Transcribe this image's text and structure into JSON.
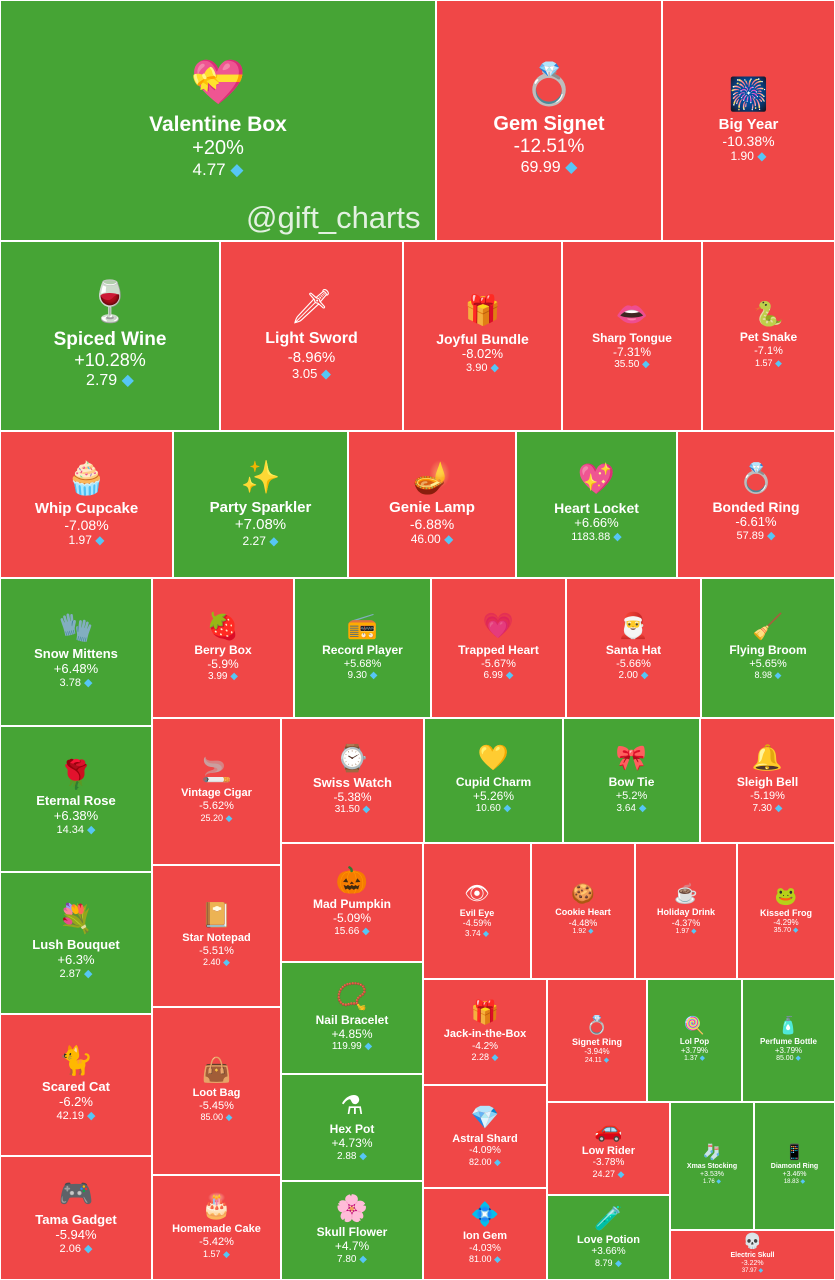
{
  "watermark": "@gift_charts",
  "currency_icon": "diamond-icon",
  "colors": {
    "up": "#46a435",
    "down": "#f04747"
  },
  "chart_data": {
    "type": "treemap",
    "size_metric": "absolute percent change",
    "items": [
      {
        "name": "Valentine Box",
        "change": "+20%",
        "price": "4.77",
        "icon": "💝"
      },
      {
        "name": "Gem Signet",
        "change": "-12.51%",
        "price": "69.99",
        "icon": "💍"
      },
      {
        "name": "Big Year",
        "change": "-10.38%",
        "price": "1.90",
        "icon": "🎆"
      },
      {
        "name": "Spiced Wine",
        "change": "+10.28%",
        "price": "2.79",
        "icon": "🍷"
      },
      {
        "name": "Light Sword",
        "change": "-8.96%",
        "price": "3.05",
        "icon": "🗡"
      },
      {
        "name": "Joyful Bundle",
        "change": "-8.02%",
        "price": "3.90",
        "icon": "🎁"
      },
      {
        "name": "Sharp Tongue",
        "change": "-7.31%",
        "price": "35.50",
        "icon": "👄"
      },
      {
        "name": "Pet Snake",
        "change": "-7.1%",
        "price": "1.57",
        "icon": "🐍"
      },
      {
        "name": "Whip Cupcake",
        "change": "-7.08%",
        "price": "1.97",
        "icon": "🧁"
      },
      {
        "name": "Party Sparkler",
        "change": "+7.08%",
        "price": "2.27",
        "icon": "✨"
      },
      {
        "name": "Genie Lamp",
        "change": "-6.88%",
        "price": "46.00",
        "icon": "🪔"
      },
      {
        "name": "Heart Locket",
        "change": "+6.66%",
        "price": "1183.88",
        "icon": "💖"
      },
      {
        "name": "Bonded Ring",
        "change": "-6.61%",
        "price": "57.89",
        "icon": "💍"
      },
      {
        "name": "Snow Mittens",
        "change": "+6.48%",
        "price": "3.78",
        "icon": "🧤"
      },
      {
        "name": "Berry Box",
        "change": "-5.9%",
        "price": "3.99",
        "icon": "🍓"
      },
      {
        "name": "Record Player",
        "change": "+5.68%",
        "price": "9.30",
        "icon": "📻"
      },
      {
        "name": "Trapped Heart",
        "change": "-5.67%",
        "price": "6.99",
        "icon": "💗"
      },
      {
        "name": "Santa Hat",
        "change": "-5.66%",
        "price": "2.00",
        "icon": "🎅"
      },
      {
        "name": "Flying Broom",
        "change": "+5.65%",
        "price": "8.98",
        "icon": "🧹"
      },
      {
        "name": "Eternal Rose",
        "change": "+6.38%",
        "price": "14.34",
        "icon": "🌹"
      },
      {
        "name": "Vintage Cigar",
        "change": "-5.62%",
        "price": "25.20",
        "icon": "🚬"
      },
      {
        "name": "Swiss Watch",
        "change": "-5.38%",
        "price": "31.50",
        "icon": "⌚"
      },
      {
        "name": "Cupid Charm",
        "change": "+5.26%",
        "price": "10.60",
        "icon": "💛"
      },
      {
        "name": "Bow Tie",
        "change": "+5.2%",
        "price": "3.64",
        "icon": "🎀"
      },
      {
        "name": "Sleigh Bell",
        "change": "-5.19%",
        "price": "7.30",
        "icon": "🔔"
      },
      {
        "name": "Mad Pumpkin",
        "change": "-5.09%",
        "price": "15.66",
        "icon": "🎃"
      },
      {
        "name": "Evil Eye",
        "change": "-4.59%",
        "price": "3.74",
        "icon": "👁"
      },
      {
        "name": "Cookie Heart",
        "change": "-4.48%",
        "price": "1.92",
        "icon": "🍪"
      },
      {
        "name": "Holiday Drink",
        "change": "-4.37%",
        "price": "1.97",
        "icon": "☕"
      },
      {
        "name": "Kissed Frog",
        "change": "-4.29%",
        "price": "35.70",
        "icon": "🐸"
      },
      {
        "name": "Lush Bouquet",
        "change": "+6.3%",
        "price": "2.87",
        "icon": "💐"
      },
      {
        "name": "Star Notepad",
        "change": "-5.51%",
        "price": "2.40",
        "icon": "📔"
      },
      {
        "name": "Nail Bracelet",
        "change": "+4.85%",
        "price": "119.99",
        "icon": "📿"
      },
      {
        "name": "Jack-in-the-Box",
        "change": "-4.2%",
        "price": "2.28",
        "icon": "🎁"
      },
      {
        "name": "Signet Ring",
        "change": "-3.94%",
        "price": "24.11",
        "icon": "💍"
      },
      {
        "name": "Lol Pop",
        "change": "+3.79%",
        "price": "1.37",
        "icon": "🍭"
      },
      {
        "name": "Perfume Bottle",
        "change": "+3.79%",
        "price": "85.00",
        "icon": "🧴"
      },
      {
        "name": "Scared Cat",
        "change": "-6.2%",
        "price": "42.19",
        "icon": "🐈"
      },
      {
        "name": "Loot Bag",
        "change": "-5.45%",
        "price": "85.00",
        "icon": "👜"
      },
      {
        "name": "Hex Pot",
        "change": "+4.73%",
        "price": "2.88",
        "icon": "⚗"
      },
      {
        "name": "Astral Shard",
        "change": "-4.09%",
        "price": "82.00",
        "icon": "💎"
      },
      {
        "name": "Low Rider",
        "change": "-3.78%",
        "price": "24.27",
        "icon": "🚗"
      },
      {
        "name": "Xmas Stocking",
        "change": "+3.53%",
        "price": "1.76",
        "icon": "🧦"
      },
      {
        "name": "Diamond Ring",
        "change": "+3.46%",
        "price": "18.83",
        "icon": "📱"
      },
      {
        "name": "Tama Gadget",
        "change": "-5.94%",
        "price": "2.06",
        "icon": "🎮"
      },
      {
        "name": "Homemade Cake",
        "change": "-5.42%",
        "price": "1.57",
        "icon": "🎂"
      },
      {
        "name": "Skull Flower",
        "change": "+4.7%",
        "price": "7.80",
        "icon": "🌸"
      },
      {
        "name": "Ion Gem",
        "change": "-4.03%",
        "price": "81.00",
        "icon": "💠"
      },
      {
        "name": "Love Potion",
        "change": "+3.66%",
        "price": "8.79",
        "icon": "🧪"
      },
      {
        "name": "Electric Skull",
        "change": "-3.22%",
        "price": "37.97",
        "icon": "💀"
      }
    ]
  }
}
